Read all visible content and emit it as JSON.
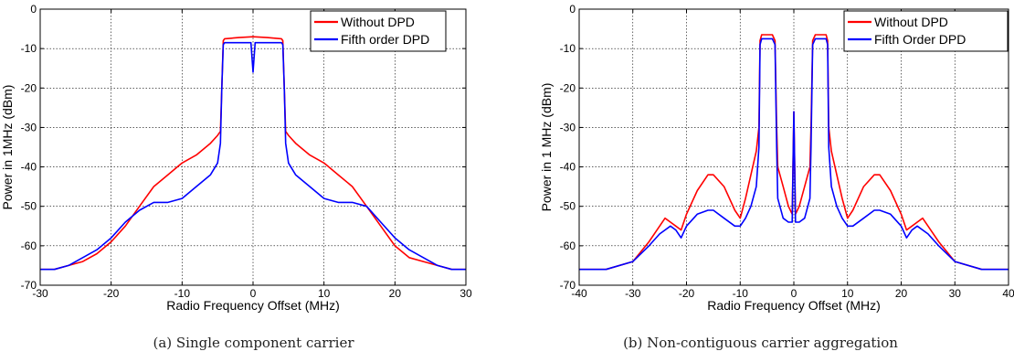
{
  "colors": {
    "without_dpd": "#ff0000",
    "with_dpd": "#0000ff",
    "grid": "#000000"
  },
  "chart_data": [
    {
      "type": "line",
      "title": "",
      "caption": "(a) Single component carrier",
      "xlabel": "Radio Frequency Offset (MHz)",
      "ylabel": "Power in 1MHz (dBm)",
      "xlim": [
        -30,
        30
      ],
      "ylim": [
        -70,
        0
      ],
      "xticks": [
        -30,
        -20,
        -10,
        0,
        10,
        20,
        30
      ],
      "yticks": [
        0,
        -10,
        -20,
        -30,
        -40,
        -50,
        -60,
        -70
      ],
      "grid": true,
      "legend_position": "top-right",
      "series": [
        {
          "name": "Without DPD",
          "color": "#ff0000",
          "x": [
            -30,
            -28,
            -26,
            -24,
            -22,
            -20,
            -18,
            -16,
            -14,
            -12,
            -10,
            -8,
            -6,
            -5,
            -4.6,
            -4.4,
            -4.2,
            -4,
            -2,
            0,
            2,
            4,
            4.2,
            4.4,
            4.6,
            5,
            6,
            8,
            10,
            12,
            14,
            16,
            18,
            20,
            22,
            24,
            26,
            28,
            30
          ],
          "y": [
            -66,
            -66,
            -65,
            -64,
            -62,
            -59,
            -55,
            -50,
            -45,
            -42,
            -39,
            -37,
            -34,
            -32,
            -31,
            -20,
            -8,
            -7.5,
            -7.2,
            -7,
            -7.2,
            -7.5,
            -8,
            -20,
            -31,
            -32,
            -34,
            -37,
            -39,
            -42,
            -45,
            -50,
            -55,
            -60,
            -63,
            -64,
            -65,
            -66,
            -66
          ]
        },
        {
          "name": "Fifth order DPD",
          "color": "#0000ff",
          "x": [
            -30,
            -28,
            -26,
            -24,
            -22,
            -20,
            -18,
            -16,
            -14,
            -12,
            -10,
            -8,
            -6,
            -5,
            -4.6,
            -4.4,
            -4.2,
            -4,
            -2,
            -0.3,
            0,
            0.3,
            2,
            4,
            4.2,
            4.4,
            4.6,
            5,
            6,
            8,
            10,
            12,
            14,
            16,
            18,
            20,
            22,
            24,
            26,
            28,
            30
          ],
          "y": [
            -66,
            -66,
            -65,
            -63,
            -61,
            -58,
            -54,
            -51,
            -49,
            -49,
            -48,
            -45,
            -42,
            -39,
            -34,
            -20,
            -9,
            -8.5,
            -8.5,
            -8.5,
            -16,
            -8.5,
            -8.5,
            -8.5,
            -9,
            -20,
            -34,
            -39,
            -42,
            -45,
            -48,
            -49,
            -49,
            -50,
            -54,
            -58,
            -61,
            -63,
            -65,
            -66,
            -66
          ]
        }
      ]
    },
    {
      "type": "line",
      "title": "",
      "caption": "(b) Non-contiguous carrier aggregation",
      "xlabel": "Radio Frequency Offset (MHz)",
      "ylabel": "Power in 1 MHz (dBm)",
      "xlim": [
        -40,
        40
      ],
      "ylim": [
        -70,
        0
      ],
      "xticks": [
        -40,
        -30,
        -20,
        -10,
        0,
        10,
        20,
        30,
        40
      ],
      "yticks": [
        0,
        -10,
        -20,
        -30,
        -40,
        -50,
        -60,
        -70
      ],
      "grid": true,
      "legend_position": "top-right",
      "series": [
        {
          "name": "Without DPD",
          "color": "#ff0000",
          "x": [
            -40,
            -35,
            -30,
            -27,
            -25,
            -24,
            -23,
            -22,
            -21,
            -20,
            -18,
            -16,
            -15,
            -13,
            -11,
            -10,
            -9,
            -8,
            -7,
            -6.5,
            -6.3,
            -6,
            -4,
            -3.5,
            -3.2,
            -3,
            -2,
            -1,
            -0.3,
            0,
            0.3,
            1,
            2,
            3,
            3.2,
            3.5,
            4,
            6,
            6.3,
            6.5,
            7,
            8,
            9,
            10,
            11,
            13,
            15,
            16,
            18,
            20,
            21,
            22,
            23,
            24,
            25,
            27,
            30,
            35,
            40
          ],
          "y": [
            -66,
            -66,
            -64,
            -59,
            -55,
            -53,
            -54,
            -55,
            -56,
            -52,
            -46,
            -42,
            -42,
            -45,
            -51,
            -53,
            -48,
            -42,
            -36,
            -30,
            -8,
            -6.5,
            -6.5,
            -8,
            -30,
            -40,
            -45,
            -50,
            -52,
            -26,
            -52,
            -50,
            -45,
            -40,
            -30,
            -8,
            -6.5,
            -6.5,
            -8,
            -30,
            -36,
            -42,
            -48,
            -53,
            -51,
            -45,
            -42,
            -42,
            -46,
            -52,
            -56,
            -55,
            -54,
            -53,
            -55,
            -59,
            -64,
            -66,
            -66
          ]
        },
        {
          "name": "Fifth Order DPD",
          "color": "#0000ff",
          "x": [
            -40,
            -35,
            -30,
            -27,
            -25,
            -24,
            -23,
            -22,
            -21,
            -20,
            -18,
            -16,
            -15,
            -13,
            -11,
            -10,
            -9,
            -8,
            -7,
            -6.5,
            -6.3,
            -6,
            -4,
            -3.5,
            -3.2,
            -3,
            -2,
            -1,
            -0.3,
            0,
            0.3,
            1,
            2,
            3,
            3.2,
            3.5,
            4,
            6,
            6.3,
            6.5,
            7,
            8,
            9,
            10,
            11,
            13,
            15,
            16,
            18,
            20,
            21,
            22,
            23,
            24,
            25,
            27,
            30,
            35,
            40
          ],
          "y": [
            -66,
            -66,
            -64,
            -60,
            -57,
            -56,
            -55,
            -56,
            -58,
            -55,
            -52,
            -51,
            -51,
            -53,
            -55,
            -55,
            -53,
            -50,
            -45,
            -35,
            -9,
            -7.5,
            -7.5,
            -9,
            -35,
            -48,
            -53,
            -54,
            -54,
            -26,
            -54,
            -54,
            -53,
            -48,
            -35,
            -9,
            -7.5,
            -7.5,
            -9,
            -35,
            -45,
            -50,
            -53,
            -55,
            -55,
            -53,
            -51,
            -51,
            -52,
            -55,
            -58,
            -56,
            -55,
            -56,
            -57,
            -60,
            -64,
            -66,
            -66
          ]
        }
      ]
    }
  ]
}
